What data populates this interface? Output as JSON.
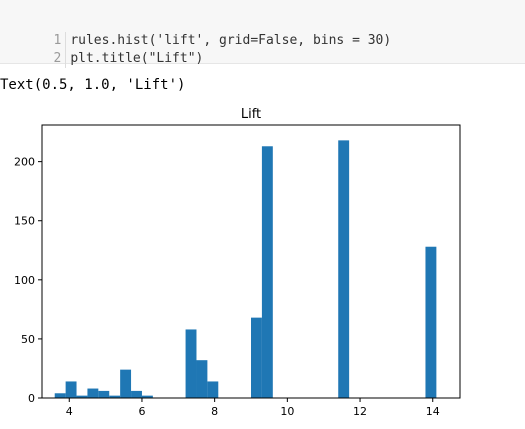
{
  "code_cell": {
    "lines": [
      {
        "num": "1",
        "text": "rules.hist('lift', grid=False, bins = 30)"
      },
      {
        "num": "2",
        "text": "plt.title(\"Lift\")"
      }
    ]
  },
  "output_text": "Text(0.5, 1.0, 'Lift')",
  "chart_data": {
    "type": "bar",
    "title": "Lift",
    "xlabel": "",
    "ylabel": "",
    "grid": false,
    "color": "#1f77b4",
    "bin_width": 0.3,
    "xlim": [
      3.25,
      14.75
    ],
    "ylim": [
      0,
      231
    ],
    "xticks": [
      4,
      6,
      8,
      10,
      12,
      14
    ],
    "yticks": [
      0,
      50,
      100,
      150,
      200
    ],
    "bins": [
      {
        "x": 3.6,
        "value": 4
      },
      {
        "x": 3.9,
        "value": 14
      },
      {
        "x": 4.2,
        "value": 2
      },
      {
        "x": 4.5,
        "value": 8
      },
      {
        "x": 4.8,
        "value": 6
      },
      {
        "x": 5.1,
        "value": 2
      },
      {
        "x": 5.4,
        "value": 24
      },
      {
        "x": 5.7,
        "value": 6
      },
      {
        "x": 6.0,
        "value": 2
      },
      {
        "x": 7.2,
        "value": 58
      },
      {
        "x": 7.5,
        "value": 32
      },
      {
        "x": 7.8,
        "value": 14
      },
      {
        "x": 9.0,
        "value": 68
      },
      {
        "x": 9.3,
        "value": 213
      },
      {
        "x": 11.4,
        "value": 218
      },
      {
        "x": 13.8,
        "value": 128
      }
    ]
  }
}
